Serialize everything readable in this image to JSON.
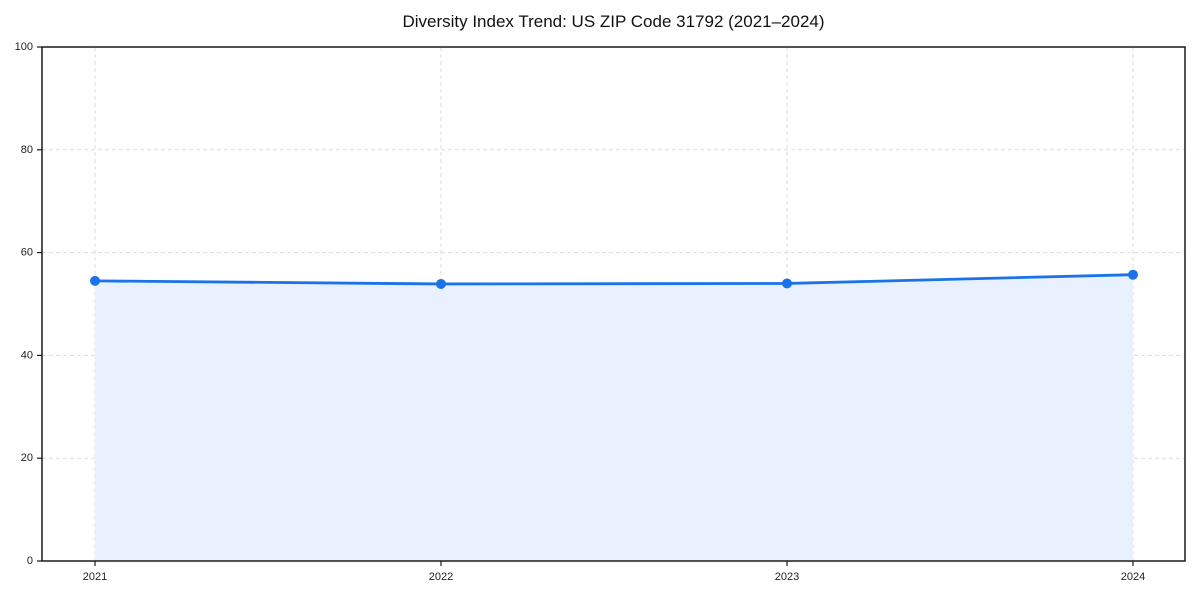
{
  "page": {
    "background_color": "#ffffff"
  },
  "chart_data": {
    "type": "area",
    "title": "Diversity Index Trend: US ZIP Code 31792 (2021–2024)",
    "series_name": "Diversity Index",
    "x": [
      2021,
      2022,
      2023,
      2024
    ],
    "values": [
      54.5,
      53.9,
      54.0,
      55.7
    ],
    "xlabel": "",
    "ylabel": "",
    "ylim": [
      0,
      100
    ],
    "yticks": [
      0,
      20,
      40,
      60,
      80,
      100
    ],
    "xtick_labels": [
      "2021",
      "2022",
      "2023",
      "2024"
    ],
    "grid": "dashed",
    "legend": "none",
    "colors": {
      "line": "#1a73e8",
      "marker": "#1a73e8",
      "area_fill": "#e8f1fd",
      "grid": "#dddddd",
      "axis": "#1a1a1a",
      "tick_label": "#222222",
      "title": "#111111"
    }
  }
}
